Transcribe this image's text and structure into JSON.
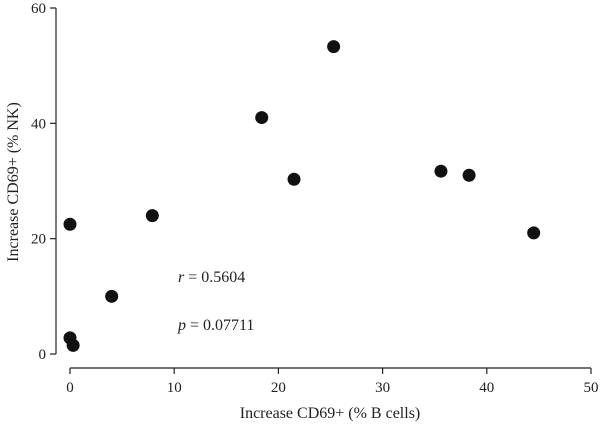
{
  "chart_data": {
    "type": "scatter",
    "xlabel": "Increase CD69+ (% B cells)",
    "ylabel": "Increase CD69+ (% NK)",
    "xlim": [
      0,
      50
    ],
    "ylim": [
      0,
      60
    ],
    "xticks": [
      0,
      10,
      20,
      30,
      40,
      50
    ],
    "yticks": [
      0,
      20,
      40,
      60
    ],
    "xtick_labels": [
      "0",
      "10",
      "20",
      "30",
      "40",
      "50"
    ],
    "ytick_labels": [
      "0",
      "20",
      "40",
      "60"
    ],
    "grid": false,
    "marker_color": "#111111",
    "points": [
      {
        "x": 0.0,
        "y": 22.5
      },
      {
        "x": 0.0,
        "y": 2.8
      },
      {
        "x": 0.3,
        "y": 1.5
      },
      {
        "x": 4.0,
        "y": 10.0
      },
      {
        "x": 7.9,
        "y": 24.0
      },
      {
        "x": 18.4,
        "y": 41.0
      },
      {
        "x": 21.5,
        "y": 30.3
      },
      {
        "x": 25.3,
        "y": 53.3
      },
      {
        "x": 35.6,
        "y": 31.7
      },
      {
        "x": 38.3,
        "y": 31.0
      },
      {
        "x": 44.5,
        "y": 21.0
      }
    ],
    "annotations": {
      "r_symbol": "r",
      "r_text": " = 0.5604",
      "p_symbol": "p",
      "p_text": " = 0.07711"
    }
  }
}
